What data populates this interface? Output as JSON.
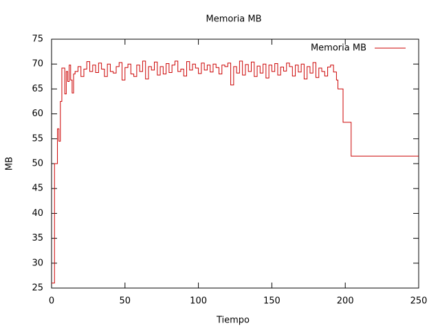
{
  "chart_data": {
    "type": "line",
    "step": true,
    "title": "Memoria MB",
    "xlabel": "Tiempo",
    "ylabel": "MB",
    "x": [
      0,
      2,
      3,
      4,
      5,
      6,
      7,
      9,
      10,
      11,
      12,
      13,
      14,
      15,
      16,
      18,
      20,
      22,
      24,
      26,
      28,
      30,
      32,
      34,
      36,
      38,
      40,
      42,
      44,
      46,
      48,
      50,
      52,
      54,
      56,
      58,
      60,
      62,
      64,
      66,
      68,
      70,
      72,
      74,
      76,
      78,
      80,
      82,
      84,
      86,
      88,
      90,
      92,
      94,
      96,
      98,
      100,
      102,
      104,
      106,
      108,
      110,
      112,
      114,
      116,
      118,
      120,
      122,
      124,
      126,
      128,
      130,
      132,
      134,
      136,
      138,
      140,
      142,
      144,
      146,
      148,
      150,
      152,
      154,
      156,
      158,
      160,
      162,
      164,
      166,
      168,
      170,
      172,
      174,
      176,
      178,
      180,
      182,
      184,
      186,
      188,
      190,
      192,
      194,
      195,
      198.5,
      204,
      250
    ],
    "series": [
      {
        "name": "Memoria MB",
        "color": "#cc0000",
        "values": [
          26,
          50,
          50,
          57,
          54.5,
          62.5,
          69.2,
          64,
          68.5,
          66.5,
          69.8,
          66.8,
          64.2,
          68,
          68.5,
          69.5,
          67.5,
          69,
          70.5,
          68.5,
          69.8,
          68.3,
          70.2,
          69,
          67.5,
          70,
          68.5,
          68.2,
          69.5,
          70.3,
          66.8,
          69.3,
          70,
          68,
          67.5,
          69.8,
          68.5,
          70.6,
          67,
          69.5,
          68.8,
          70.4,
          67.8,
          69.5,
          68,
          70.1,
          68.3,
          69.8,
          70.6,
          68.5,
          69,
          67.6,
          70.5,
          68.8,
          70,
          69.2,
          68.1,
          70.2,
          68.8,
          69.8,
          68.4,
          70,
          69.3,
          68,
          69.8,
          69.5,
          70.2,
          65.8,
          69.5,
          68.2,
          70.6,
          67.8,
          69.9,
          68.5,
          70.4,
          67.5,
          69.6,
          68.2,
          70,
          67.2,
          69.8,
          68.5,
          70.1,
          67.8,
          69.4,
          68.6,
          70.2,
          69.5,
          67.6,
          69.8,
          68.4,
          70,
          67,
          69.5,
          68.2,
          70.3,
          67.3,
          69.2,
          68.5,
          67.6,
          69.4,
          69.8,
          68.4,
          66.8,
          65,
          58.3,
          51.5,
          51.5
        ]
      }
    ],
    "xlim": [
      0,
      250
    ],
    "xticks": [
      0,
      50,
      100,
      150,
      200,
      250
    ],
    "ylim": [
      25,
      75
    ],
    "yticks": [
      25,
      30,
      35,
      40,
      45,
      50,
      55,
      60,
      65,
      70,
      75
    ],
    "grid": false,
    "legend": "top right"
  }
}
